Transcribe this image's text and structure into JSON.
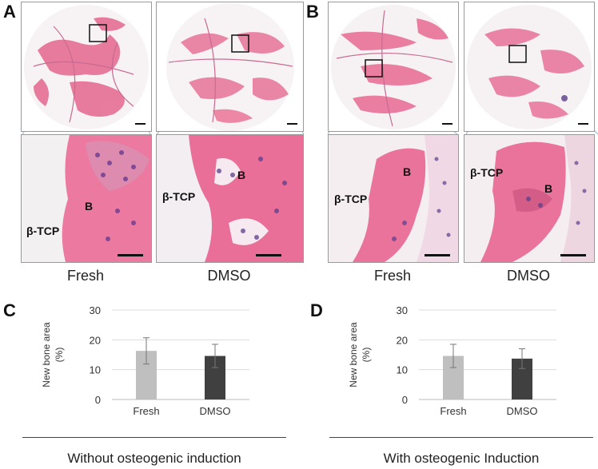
{
  "panels": {
    "A": "A",
    "B": "B",
    "C": "C",
    "D": "D"
  },
  "histology": {
    "tissue_labels": {
      "tcp": "β-TCP",
      "bone": "B"
    },
    "condition_labels": [
      "Fresh",
      "DMSO",
      "Fresh",
      "DMSO"
    ]
  },
  "chart_data": [
    {
      "type": "bar",
      "panel": "C",
      "categories": [
        "Fresh",
        "DMSO"
      ],
      "values": [
        16.3,
        14.6
      ],
      "errors": [
        4.4,
        3.9
      ],
      "ylabel": "New bone area\n(%)",
      "ylabel_line1": "New bone area",
      "ylabel_line2": "(%)",
      "ylim": [
        0,
        30
      ],
      "yticks": [
        "0",
        "10",
        "20",
        "30"
      ],
      "colors": [
        "#bfbfbf",
        "#404040"
      ],
      "grid": true,
      "footer": "Without osteogenic induction"
    },
    {
      "type": "bar",
      "panel": "D",
      "categories": [
        "Fresh",
        "DMSO"
      ],
      "values": [
        14.6,
        13.7
      ],
      "errors": [
        3.9,
        3.3
      ],
      "ylabel": "New bone area\n(%)",
      "ylabel_line1": "New bone area",
      "ylabel_line2": "(%)",
      "ylim": [
        0,
        30
      ],
      "yticks": [
        "0",
        "10",
        "20",
        "30"
      ],
      "colors": [
        "#bfbfbf",
        "#404040"
      ],
      "grid": true,
      "footer": "With osteogenic Induction"
    }
  ]
}
